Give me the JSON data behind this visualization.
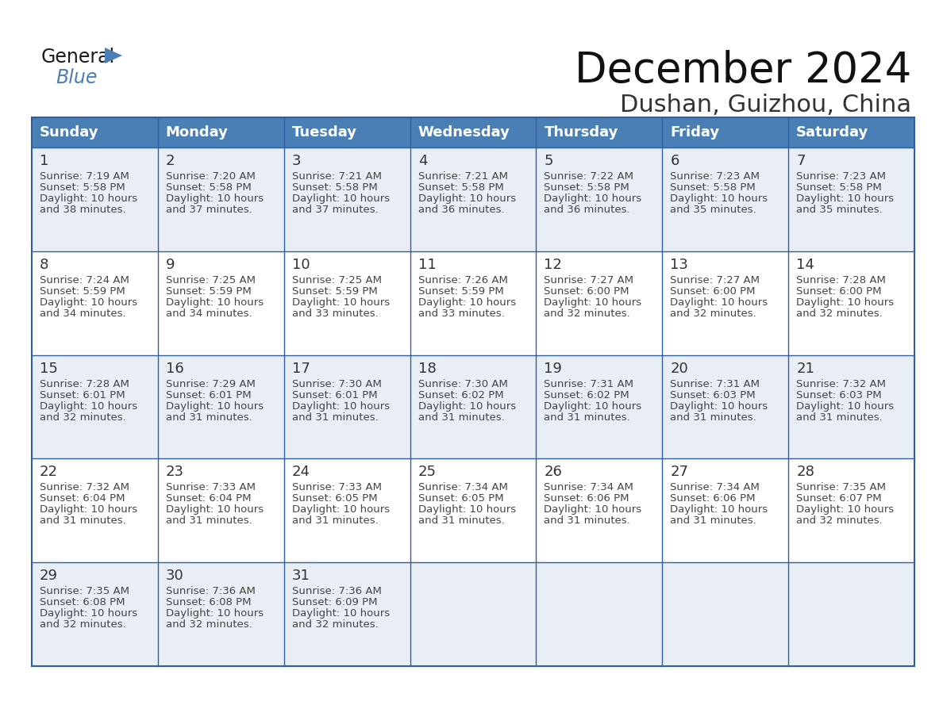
{
  "title": "December 2024",
  "subtitle": "Dushan, Guizhou, China",
  "header_bg_color": "#4a7fb5",
  "header_text_color": "#ffffff",
  "row_bg_odd": "#e8eef4",
  "row_bg_even": "#ffffff",
  "cell_border_color": "#2e5fa3",
  "day_number_color": "#333333",
  "day_text_color": "#444444",
  "weekdays": [
    "Sunday",
    "Monday",
    "Tuesday",
    "Wednesday",
    "Thursday",
    "Friday",
    "Saturday"
  ],
  "days": [
    {
      "day": 1,
      "col": 0,
      "row": 0,
      "sunrise": "7:19 AM",
      "sunset": "5:58 PM",
      "daylight_suffix": "38 minutes."
    },
    {
      "day": 2,
      "col": 1,
      "row": 0,
      "sunrise": "7:20 AM",
      "sunset": "5:58 PM",
      "daylight_suffix": "37 minutes."
    },
    {
      "day": 3,
      "col": 2,
      "row": 0,
      "sunrise": "7:21 AM",
      "sunset": "5:58 PM",
      "daylight_suffix": "37 minutes."
    },
    {
      "day": 4,
      "col": 3,
      "row": 0,
      "sunrise": "7:21 AM",
      "sunset": "5:58 PM",
      "daylight_suffix": "36 minutes."
    },
    {
      "day": 5,
      "col": 4,
      "row": 0,
      "sunrise": "7:22 AM",
      "sunset": "5:58 PM",
      "daylight_suffix": "36 minutes."
    },
    {
      "day": 6,
      "col": 5,
      "row": 0,
      "sunrise": "7:23 AM",
      "sunset": "5:58 PM",
      "daylight_suffix": "35 minutes."
    },
    {
      "day": 7,
      "col": 6,
      "row": 0,
      "sunrise": "7:23 AM",
      "sunset": "5:58 PM",
      "daylight_suffix": "35 minutes."
    },
    {
      "day": 8,
      "col": 0,
      "row": 1,
      "sunrise": "7:24 AM",
      "sunset": "5:59 PM",
      "daylight_suffix": "34 minutes."
    },
    {
      "day": 9,
      "col": 1,
      "row": 1,
      "sunrise": "7:25 AM",
      "sunset": "5:59 PM",
      "daylight_suffix": "34 minutes."
    },
    {
      "day": 10,
      "col": 2,
      "row": 1,
      "sunrise": "7:25 AM",
      "sunset": "5:59 PM",
      "daylight_suffix": "33 minutes."
    },
    {
      "day": 11,
      "col": 3,
      "row": 1,
      "sunrise": "7:26 AM",
      "sunset": "5:59 PM",
      "daylight_suffix": "33 minutes."
    },
    {
      "day": 12,
      "col": 4,
      "row": 1,
      "sunrise": "7:27 AM",
      "sunset": "6:00 PM",
      "daylight_suffix": "32 minutes."
    },
    {
      "day": 13,
      "col": 5,
      "row": 1,
      "sunrise": "7:27 AM",
      "sunset": "6:00 PM",
      "daylight_suffix": "32 minutes."
    },
    {
      "day": 14,
      "col": 6,
      "row": 1,
      "sunrise": "7:28 AM",
      "sunset": "6:00 PM",
      "daylight_suffix": "32 minutes."
    },
    {
      "day": 15,
      "col": 0,
      "row": 2,
      "sunrise": "7:28 AM",
      "sunset": "6:01 PM",
      "daylight_suffix": "32 minutes."
    },
    {
      "day": 16,
      "col": 1,
      "row": 2,
      "sunrise": "7:29 AM",
      "sunset": "6:01 PM",
      "daylight_suffix": "31 minutes."
    },
    {
      "day": 17,
      "col": 2,
      "row": 2,
      "sunrise": "7:30 AM",
      "sunset": "6:01 PM",
      "daylight_suffix": "31 minutes."
    },
    {
      "day": 18,
      "col": 3,
      "row": 2,
      "sunrise": "7:30 AM",
      "sunset": "6:02 PM",
      "daylight_suffix": "31 minutes."
    },
    {
      "day": 19,
      "col": 4,
      "row": 2,
      "sunrise": "7:31 AM",
      "sunset": "6:02 PM",
      "daylight_suffix": "31 minutes."
    },
    {
      "day": 20,
      "col": 5,
      "row": 2,
      "sunrise": "7:31 AM",
      "sunset": "6:03 PM",
      "daylight_suffix": "31 minutes."
    },
    {
      "day": 21,
      "col": 6,
      "row": 2,
      "sunrise": "7:32 AM",
      "sunset": "6:03 PM",
      "daylight_suffix": "31 minutes."
    },
    {
      "day": 22,
      "col": 0,
      "row": 3,
      "sunrise": "7:32 AM",
      "sunset": "6:04 PM",
      "daylight_suffix": "31 minutes."
    },
    {
      "day": 23,
      "col": 1,
      "row": 3,
      "sunrise": "7:33 AM",
      "sunset": "6:04 PM",
      "daylight_suffix": "31 minutes."
    },
    {
      "day": 24,
      "col": 2,
      "row": 3,
      "sunrise": "7:33 AM",
      "sunset": "6:05 PM",
      "daylight_suffix": "31 minutes."
    },
    {
      "day": 25,
      "col": 3,
      "row": 3,
      "sunrise": "7:34 AM",
      "sunset": "6:05 PM",
      "daylight_suffix": "31 minutes."
    },
    {
      "day": 26,
      "col": 4,
      "row": 3,
      "sunrise": "7:34 AM",
      "sunset": "6:06 PM",
      "daylight_suffix": "31 minutes."
    },
    {
      "day": 27,
      "col": 5,
      "row": 3,
      "sunrise": "7:34 AM",
      "sunset": "6:06 PM",
      "daylight_suffix": "31 minutes."
    },
    {
      "day": 28,
      "col": 6,
      "row": 3,
      "sunrise": "7:35 AM",
      "sunset": "6:07 PM",
      "daylight_suffix": "32 minutes."
    },
    {
      "day": 29,
      "col": 0,
      "row": 4,
      "sunrise": "7:35 AM",
      "sunset": "6:08 PM",
      "daylight_suffix": "32 minutes."
    },
    {
      "day": 30,
      "col": 1,
      "row": 4,
      "sunrise": "7:36 AM",
      "sunset": "6:08 PM",
      "daylight_suffix": "32 minutes."
    },
    {
      "day": 31,
      "col": 2,
      "row": 4,
      "sunrise": "7:36 AM",
      "sunset": "6:09 PM",
      "daylight_suffix": "32 minutes."
    }
  ],
  "num_rows": 5,
  "num_cols": 7,
  "title_fontsize": 38,
  "subtitle_fontsize": 22,
  "header_fontsize": 13,
  "day_num_fontsize": 13,
  "day_text_fontsize": 9.5
}
